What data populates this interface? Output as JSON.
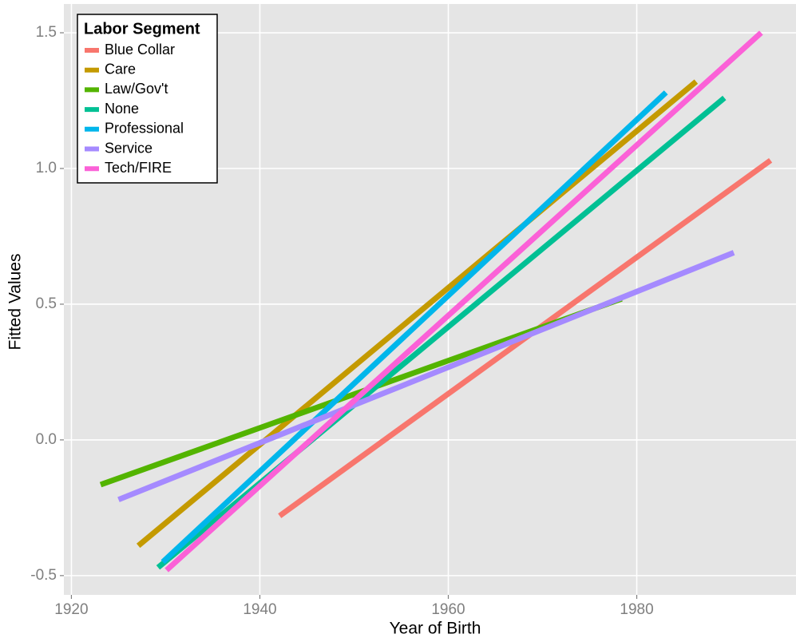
{
  "chart_data": {
    "type": "line",
    "x_label": "Year of Birth",
    "y_label": "Fitted Values",
    "legend_title": "Labor Segment",
    "legend_position": "top-left",
    "grid": true,
    "xlim": [
      1919.2,
      1996.9
    ],
    "ylim": [
      -0.571,
      1.606
    ],
    "xticks": [
      1920,
      1940,
      1960,
      1980
    ],
    "yticks": [
      -0.5,
      {
        "value": 0,
        "label": "0.0"
      },
      0.5,
      {
        "value": 1,
        "label": "1.0"
      },
      1.5
    ],
    "series": [
      {
        "name": "Blue Collar",
        "color": "#F8766D",
        "x": [
          1942.1,
          1994.2
        ],
        "values": [
          -0.28,
          1.03
        ]
      },
      {
        "name": "Care",
        "color": "#C49A00",
        "x": [
          1927.1,
          1986.3
        ],
        "values": [
          -0.39,
          1.32
        ]
      },
      {
        "name": "Law/Gov't",
        "color": "#53B400",
        "x": [
          1923.1,
          1978.4
        ],
        "values": [
          -0.165,
          0.52
        ]
      },
      {
        "name": "None",
        "color": "#00C094",
        "x": [
          1929.2,
          1989.3
        ],
        "values": [
          -0.47,
          1.26
        ]
      },
      {
        "name": "Professional",
        "color": "#00B6EB",
        "x": [
          1929.7,
          1983.1
        ],
        "values": [
          -0.45,
          1.28
        ]
      },
      {
        "name": "Service",
        "color": "#A58AFF",
        "x": [
          1925.0,
          1990.3
        ],
        "values": [
          -0.22,
          0.69
        ]
      },
      {
        "name": "Tech/FIRE",
        "color": "#FB61D7",
        "x": [
          1930.1,
          1993.2
        ],
        "values": [
          -0.48,
          1.5
        ]
      }
    ]
  }
}
